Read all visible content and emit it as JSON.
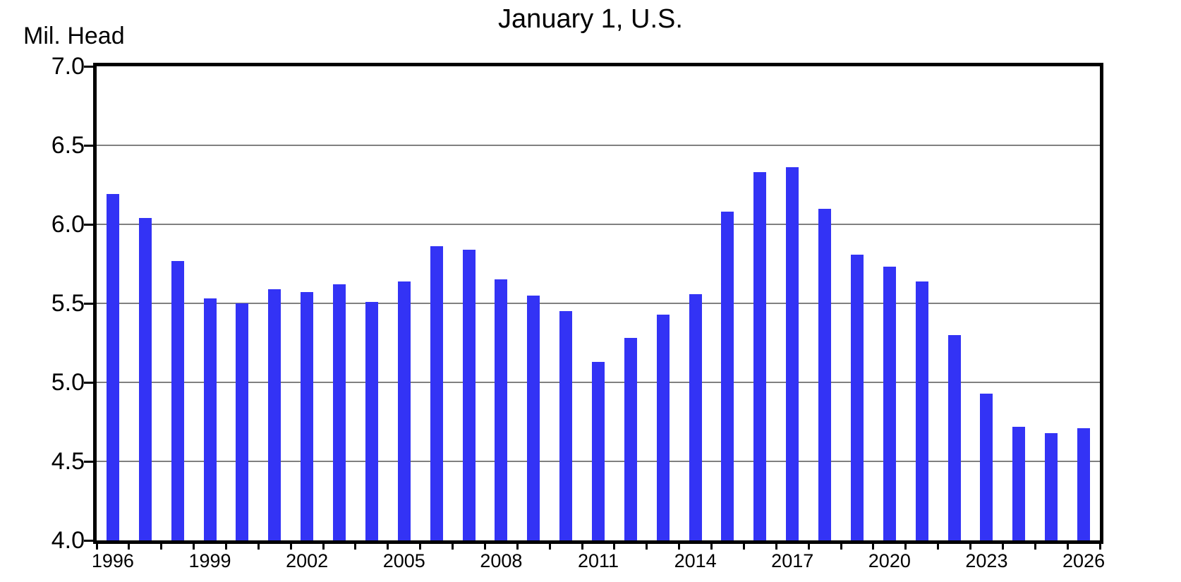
{
  "chart_data": {
    "type": "bar",
    "title": "January 1, U.S.",
    "ylabel": "Mil. Head",
    "xlabel": "",
    "categories": [
      "1996",
      "1997",
      "1998",
      "1999",
      "2000",
      "2001",
      "2002",
      "2003",
      "2004",
      "2005",
      "2006",
      "2007",
      "2008",
      "2009",
      "2010",
      "2011",
      "2012",
      "2013",
      "2014",
      "2015",
      "2016",
      "2017",
      "2018",
      "2019",
      "2020",
      "2021",
      "2022",
      "2023",
      "2024",
      "2025",
      "2026"
    ],
    "values": [
      6.19,
      6.04,
      5.77,
      5.53,
      5.5,
      5.59,
      5.57,
      5.62,
      5.51,
      5.64,
      5.86,
      5.84,
      5.65,
      5.55,
      5.45,
      5.13,
      5.28,
      5.43,
      5.56,
      6.08,
      6.33,
      6.36,
      6.1,
      5.81,
      5.73,
      5.64,
      5.3,
      4.93,
      4.72,
      4.68,
      4.71
    ],
    "ylim": [
      4.0,
      7.0
    ],
    "ytick_step": 0.5,
    "ytick_labels": [
      "7.0",
      "6.5",
      "6.0",
      "5.5",
      "5.0",
      "4.5",
      "4.0"
    ],
    "xtick_labels": [
      "1996",
      "1999",
      "2002",
      "2005",
      "2008",
      "2011",
      "2014",
      "2017",
      "2020",
      "2023",
      "2026"
    ],
    "xtick_label_every": 3,
    "grid": true,
    "legend_position": "none",
    "colors": {
      "bar": "#3333f5",
      "grid": "#808080",
      "axis": "#000000",
      "text": "#000000",
      "background": "#ffffff"
    }
  }
}
